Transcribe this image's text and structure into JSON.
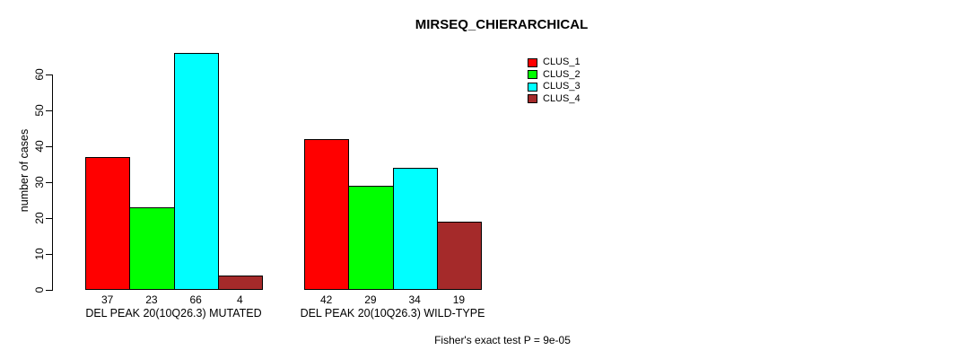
{
  "chart_data": {
    "type": "bar",
    "title": "MIRSEQ_CHIERARCHICAL",
    "ylabel": "number of cases",
    "xlabel": "",
    "yticks": [
      0,
      10,
      20,
      30,
      40,
      50,
      60
    ],
    "ylim": [
      0,
      66
    ],
    "grid": false,
    "bar_value_labels_shown": true,
    "categories": [
      "DEL PEAK 20(10Q26.3) MUTATED",
      "DEL PEAK 20(10Q26.3) WILD-TYPE"
    ],
    "series": [
      {
        "name": "CLUS_1",
        "color": "#FF0000",
        "values": [
          37,
          42
        ]
      },
      {
        "name": "CLUS_2",
        "color": "#00FF00",
        "values": [
          23,
          29
        ]
      },
      {
        "name": "CLUS_3",
        "color": "#00FFFF",
        "values": [
          66,
          34
        ]
      },
      {
        "name": "CLUS_4",
        "color": "#A52A2A",
        "values": [
          4,
          19
        ]
      }
    ],
    "legend": {
      "position": "top-right",
      "entries": [
        "CLUS_1",
        "CLUS_2",
        "CLUS_3",
        "CLUS_4"
      ]
    },
    "annotation": "Fisher's exact test P = 9e-05",
    "colors": {
      "background": "#FFFFFF",
      "axis": "#000000",
      "bar_border": "#000000",
      "text": "#000000"
    }
  }
}
